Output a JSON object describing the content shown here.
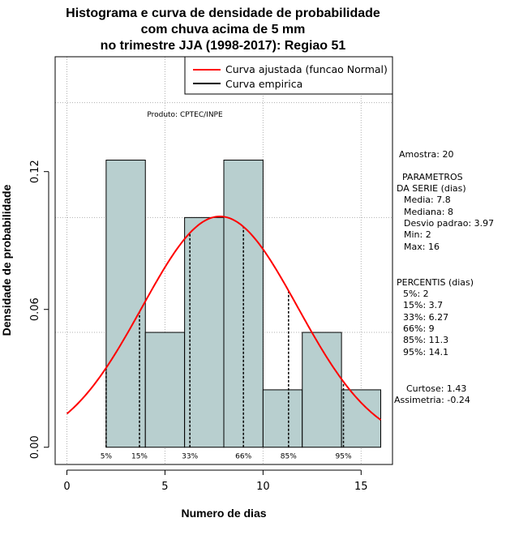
{
  "chart_data": {
    "type": "histogram",
    "title": [
      "Histograma e curva de densidade de probabilidade",
      "com chuva acima de 5 mm",
      "no trimestre JJA (1998-2017): Regiao 51"
    ],
    "xlabel": "Numero de dias",
    "ylabel": "Densidade de probabilidade",
    "xlim": [
      -0.6,
      16.6
    ],
    "ylim": [
      -0.0075,
      0.17
    ],
    "xticks": [
      0,
      5,
      10,
      15
    ],
    "xtick_labels": [
      "0",
      "5",
      "10",
      "15"
    ],
    "yticks": [
      0.0,
      0.06,
      0.12
    ],
    "ytick_labels": [
      "0.00",
      "0.06",
      "0.12"
    ],
    "grid_x": [
      0,
      5,
      10,
      15
    ],
    "grid_y": [
      0.05,
      0.1,
      0.15
    ],
    "bins": [
      {
        "x0": 2,
        "x1": 4,
        "density": 0.125
      },
      {
        "x0": 4,
        "x1": 6,
        "density": 0.05
      },
      {
        "x0": 6,
        "x1": 8,
        "density": 0.1
      },
      {
        "x0": 8,
        "x1": 10,
        "density": 0.125
      },
      {
        "x0": 10,
        "x1": 12,
        "density": 0.025
      },
      {
        "x0": 12,
        "x1": 14,
        "density": 0.05
      },
      {
        "x0": 14,
        "x1": 16,
        "density": 0.025
      }
    ],
    "normal_fit": {
      "mean": 7.8,
      "sd": 3.97,
      "x_from": 0,
      "x_to": 16
    },
    "percentile_lines": [
      {
        "label": "5%",
        "x": 2
      },
      {
        "label": "15%",
        "x": 3.7
      },
      {
        "label": "33%",
        "x": 6.27
      },
      {
        "label": "66%",
        "x": 9
      },
      {
        "label": "85%",
        "x": 11.3
      },
      {
        "label": "95%",
        "x": 14.1
      }
    ],
    "legend": [
      {
        "label": "Curva ajustada (funcao Normal)",
        "color": "#ff0000"
      },
      {
        "label": "Curva empirica",
        "color": "#000000"
      }
    ],
    "legend_position": "top-right",
    "product_note": "Produto: CPTEC/INPE",
    "colors": {
      "bar_fill": "#b8cfcf",
      "bar_stroke": "#000000",
      "curve": "#ff0000",
      "grid": "#b0b0b0"
    }
  },
  "side_panel": {
    "sample": "Amostra: 20",
    "params_header_1": "PARAMETROS",
    "params_header_2": "DA SERIE (dias)",
    "params": [
      "Media: 7.8",
      "Mediana: 8",
      "Desvio padrao: 3.97",
      "Min: 2",
      "Max: 16"
    ],
    "percentis_header": "PERCENTIS (dias)",
    "percentis": [
      "5%: 2",
      "15%: 3.7",
      "33%: 6.27",
      "66%: 9",
      "85%: 11.3",
      "95%: 14.1"
    ],
    "curtose": "Curtose: 1.43",
    "assimetria": "Assimetria: -0.24"
  }
}
